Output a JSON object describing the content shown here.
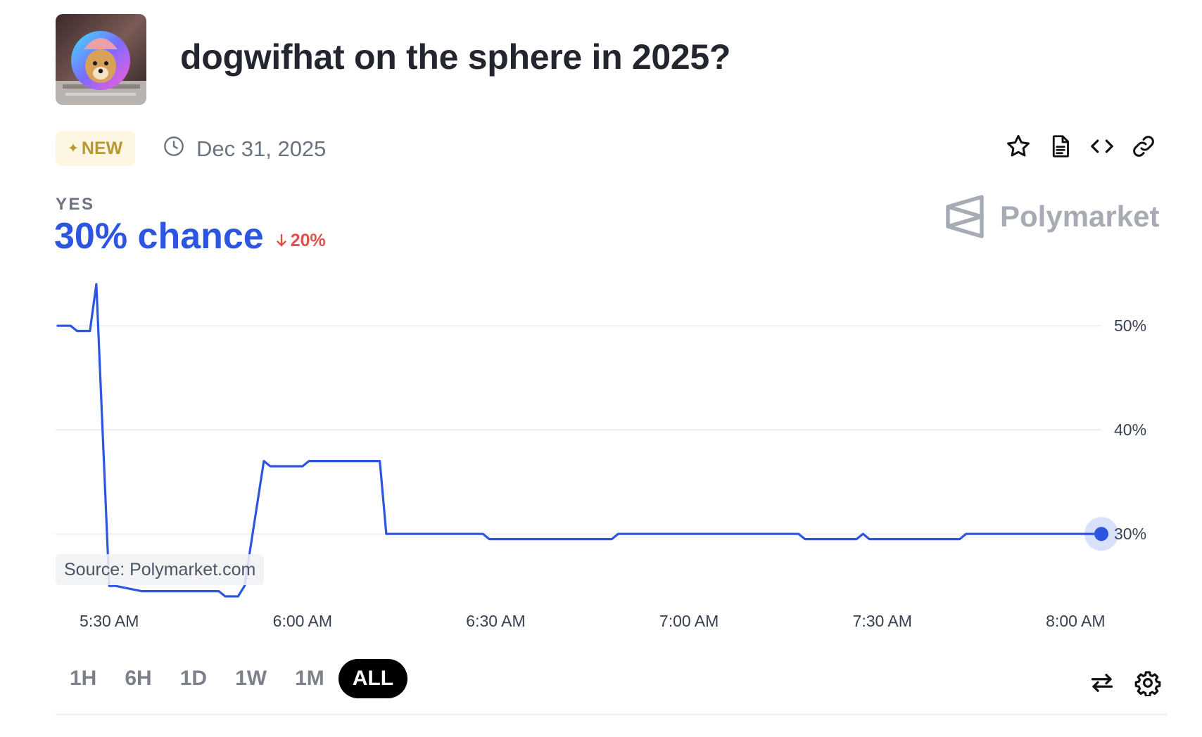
{
  "market": {
    "title": "dogwifhat on the sphere in 2025?",
    "badge": "NEW",
    "end_date": "Dec 31, 2025",
    "outcome_label": "YES",
    "chance": "30% chance",
    "change": "20%",
    "change_direction": "down",
    "brand": "Polymarket",
    "source": "Source: Polymarket.com",
    "image_icon": "dogwifhat-avatar"
  },
  "actions": {
    "icons": [
      "star-icon",
      "document-icon",
      "code-icon",
      "link-icon"
    ],
    "bottom_icons": [
      "swap-icon",
      "gear-icon"
    ]
  },
  "time_ranges": [
    "1H",
    "6H",
    "1D",
    "1W",
    "1M",
    "ALL"
  ],
  "active_range": "ALL",
  "colors": {
    "line": "#2c55e0",
    "accent_badge": "#b8982f",
    "negative": "#e0514a",
    "grid": "#eceef1"
  },
  "chart_data": {
    "type": "line",
    "series": [
      {
        "x": [
          "5:22 AM",
          "5:24 AM",
          "5:25 AM",
          "5:27 AM",
          "5:28 AM",
          "5:30 AM",
          "5:31 AM",
          "5:35 AM",
          "5:36 AM",
          "5:47 AM",
          "5:48 AM",
          "5:50 AM",
          "5:51 AM",
          "5:54 AM",
          "5:55 AM",
          "6:00 AM",
          "6:01 AM",
          "6:12 AM",
          "6:13 AM",
          "6:28 AM",
          "6:29 AM",
          "6:48 AM",
          "6:49 AM",
          "7:17 AM",
          "7:18 AM",
          "7:26 AM",
          "7:27 AM",
          "7:28 AM",
          "7:42 AM",
          "7:43 AM",
          "8:04 AM"
        ],
        "y": [
          50,
          50,
          49.5,
          49.5,
          54,
          25,
          25,
          24.5,
          24.5,
          24.5,
          24,
          24,
          25,
          37,
          36.5,
          36.5,
          37,
          37,
          30,
          30,
          29.5,
          29.5,
          30,
          30,
          29.5,
          29.5,
          30,
          29.5,
          29.5,
          30,
          30
        ]
      }
    ],
    "x_ticks": [
      "5:30 AM",
      "6:00 AM",
      "6:30 AM",
      "7:00 AM",
      "7:30 AM",
      "8:00 AM"
    ],
    "y_ticks": [
      50,
      40,
      30
    ],
    "y_tick_labels": [
      "50%",
      "40%",
      "30%"
    ],
    "ylim": [
      24,
      54
    ],
    "grid": true,
    "last_value": 30
  }
}
